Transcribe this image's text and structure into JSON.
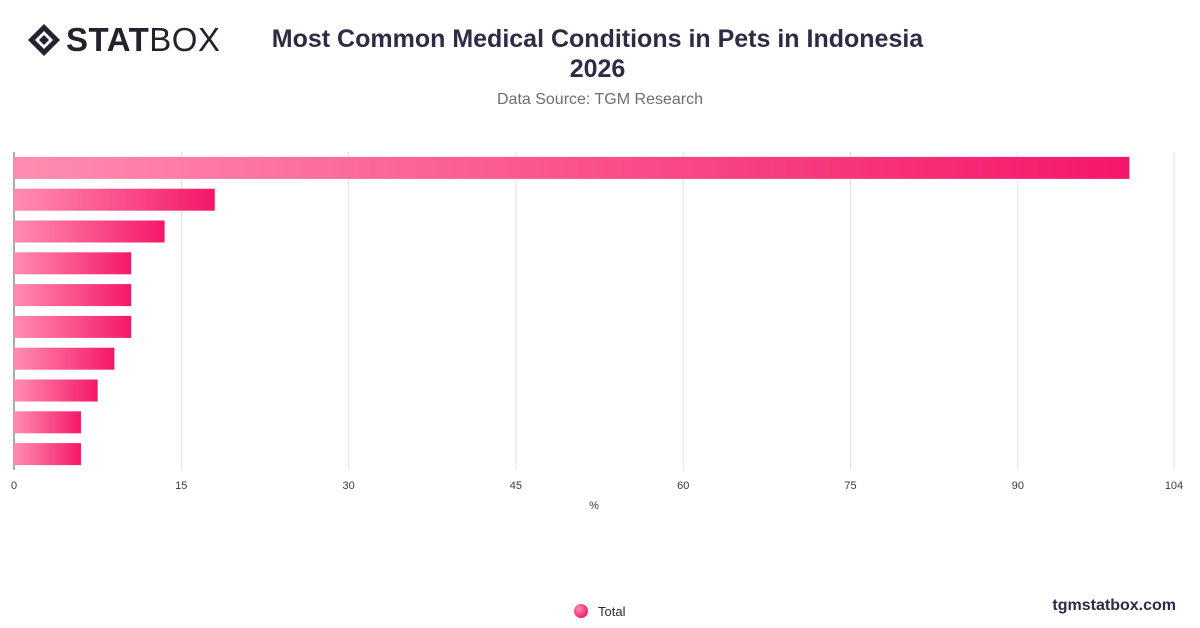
{
  "header": {
    "brand_bold": "STAT",
    "brand_light": "BOX",
    "title_line1": "Most Common Medical Conditions in Pets in Indonesia",
    "title_line2": "2026",
    "subtitle": "Data Source: TGM Research"
  },
  "footer": {
    "site": "tgmstatbox.com"
  },
  "colors": {
    "bar_start": "#ff8db0",
    "bar_end": "#f5176a",
    "grid": "#e3e3e3",
    "axis_text": "#3a3a3a",
    "logo": "#22232d"
  },
  "chart_data": {
    "type": "bar",
    "orientation": "horizontal",
    "categories": [
      "",
      "",
      "",
      "",
      "",
      "",
      "",
      "",
      "",
      ""
    ],
    "series": [
      {
        "name": "Total",
        "values": [
          100,
          18,
          13.5,
          10.5,
          10.5,
          10.5,
          9,
          7.5,
          6,
          6
        ]
      }
    ],
    "xlabel": "%",
    "ylabel": "",
    "xlim": [
      0,
      104
    ],
    "x_ticks": [
      0,
      15,
      30,
      45,
      60,
      75,
      90,
      104
    ],
    "grid": true,
    "legend": "bottom-center"
  }
}
